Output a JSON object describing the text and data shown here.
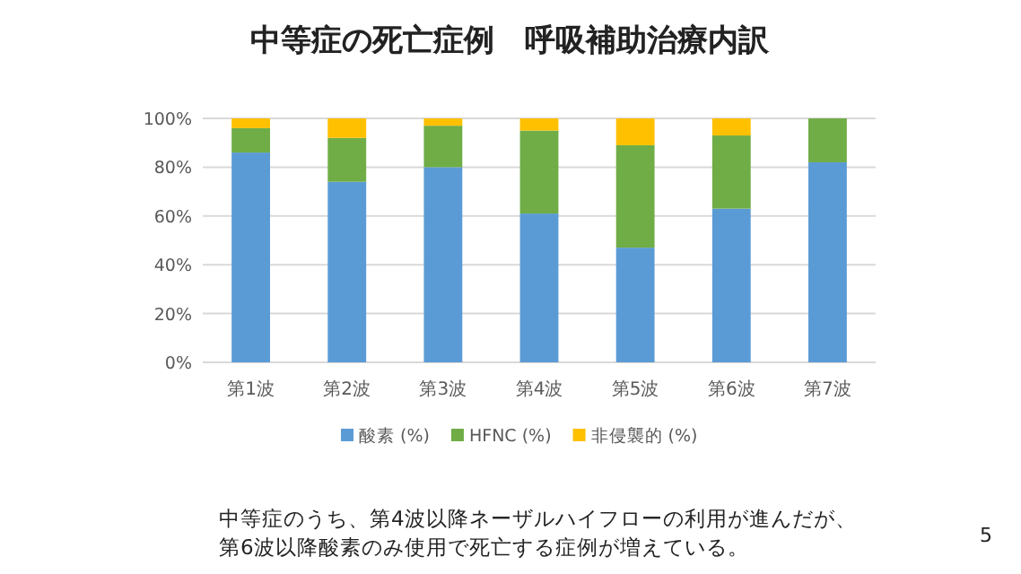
{
  "chart_data": {
    "type": "bar",
    "stacked": true,
    "title": "中等症の死亡症例　呼吸補助治療内訳",
    "categories": [
      "第1波",
      "第2波",
      "第3波",
      "第4波",
      "第5波",
      "第6波",
      "第7波"
    ],
    "series": [
      {
        "name": "酸素 (%)",
        "color": "#5b9bd5",
        "values": [
          86,
          74,
          80,
          61,
          47,
          63,
          82
        ]
      },
      {
        "name": "HFNC (%)",
        "color": "#70ad47",
        "values": [
          10,
          18,
          17,
          34,
          42,
          30,
          18
        ]
      },
      {
        "name": "非侵襲的 (%)",
        "color": "#ffc000",
        "values": [
          4,
          8,
          3,
          5,
          11,
          7,
          0
        ]
      }
    ],
    "ylim": [
      0,
      100
    ],
    "yticks": [
      {
        "value": 0,
        "label": "0%"
      },
      {
        "value": 20,
        "label": "20%"
      },
      {
        "value": 40,
        "label": "40%"
      },
      {
        "value": 60,
        "label": "60%"
      },
      {
        "value": 80,
        "label": "80%"
      },
      {
        "value": 100,
        "label": "100%"
      }
    ],
    "grid": "y",
    "legend": "bottom",
    "annotations": [
      "中等症のうち、第4波以降ネーザルハイフローの利用が進んだが、",
      "第6波以降酸素のみ使用で死亡する症例が増えている。",
      "5"
    ]
  }
}
